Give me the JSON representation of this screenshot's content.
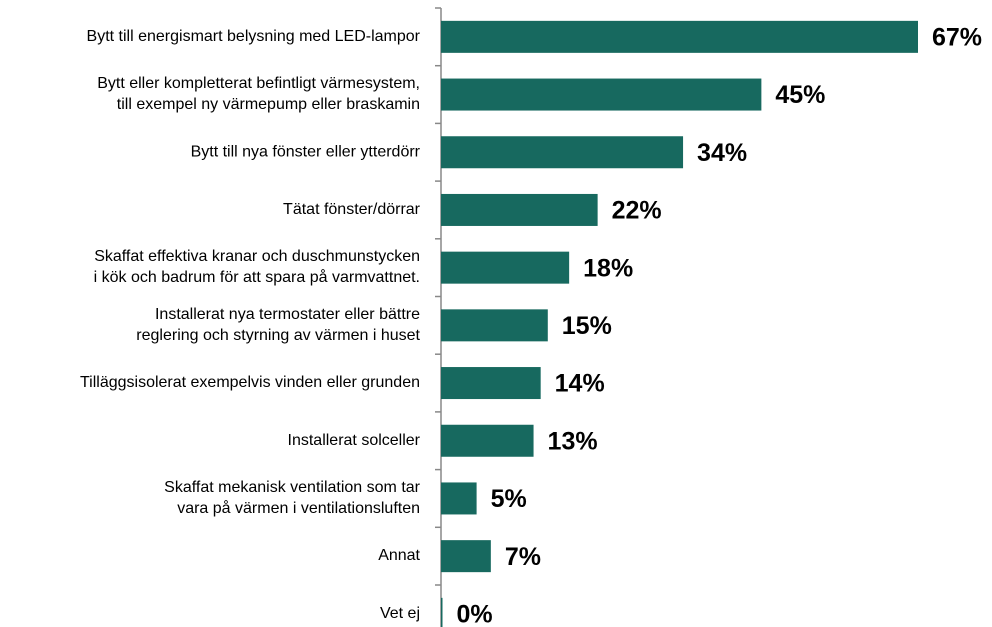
{
  "chart_data": {
    "type": "bar",
    "orientation": "horizontal",
    "categories": [
      "Bytt till energismart belysning med LED-lampor",
      "Bytt eller kompletterat befintligt värmesystem,\ntill exempel ny värmepump eller braskamin",
      "Bytt till nya fönster eller ytterdörr",
      "Tätat fönster/dörrar",
      "Skaffat effektiva kranar och duschmunstycken\ni kök och badrum för att spara på varmvattnet.",
      "Installerat nya termostater eller bättre\nreglering och styrning av värmen i huset",
      "Tilläggsisolerat exempelvis vinden eller grunden",
      "Installerat solceller",
      "Skaffat mekanisk ventilation som tar\nvara på värmen i ventilationsluften",
      "Annat",
      "Vet ej"
    ],
    "values": [
      67,
      45,
      34,
      22,
      18,
      15,
      14,
      13,
      5,
      7,
      0
    ],
    "value_labels": [
      "67%",
      "45%",
      "34%",
      "22%",
      "18%",
      "15%",
      "14%",
      "13%",
      "5%",
      "7%",
      "0%"
    ],
    "color": "#17695f"
  }
}
